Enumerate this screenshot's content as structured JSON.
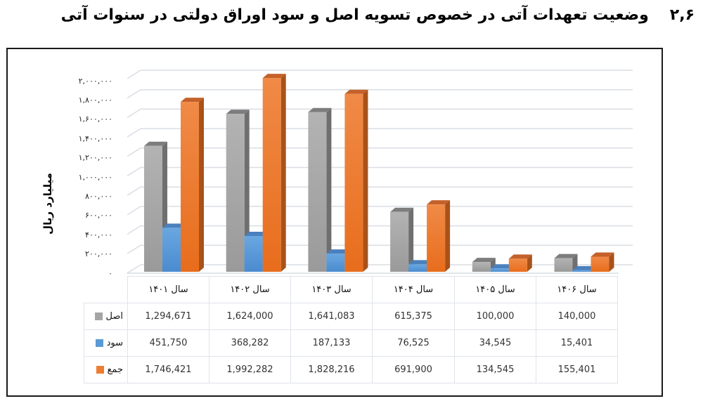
{
  "title": {
    "number": "۲,۶",
    "text": "وضعیت تعهدات آتی در خصوص تسویه اصل و سود اوراق دولتی در سنوات آتی"
  },
  "colors": {
    "principal": "#a5a5a5",
    "interest": "#5b9bd5",
    "total": "#ed7d31",
    "gridline": "#d9dde3",
    "frame": "#1a1a1a"
  },
  "axis": {
    "ylabel": "میلیارد ریال",
    "yticks": [
      "۲,۰۰۰,۰۰۰",
      "۱,۸۰۰,۰۰۰",
      "۱,۶۰۰,۰۰۰",
      "۱,۴۰۰,۰۰۰",
      "۱,۲۰۰,۰۰۰",
      "۱,۰۰۰,۰۰۰",
      "۸۰۰,۰۰۰",
      "۶۰۰,۰۰۰",
      "۴۰۰,۰۰۰",
      "۲۰۰,۰۰۰",
      "۰"
    ]
  },
  "table": {
    "headers": [
      "سال ۱۴۰۱",
      "سال ۱۴۰۲",
      "سال ۱۴۰۳",
      "سال ۱۴۰۴",
      "سال ۱۴۰۵",
      "سال ۱۴۰۶"
    ],
    "rows": [
      {
        "label": "اصل",
        "values": [
          "1,294,671",
          "1,624,000",
          "1,641,083",
          "615,375",
          "100,000",
          "140,000"
        ]
      },
      {
        "label": "سود",
        "values": [
          "451,750",
          "368,282",
          "187,133",
          "76,525",
          "34,545",
          "15,401"
        ]
      },
      {
        "label": "جمع",
        "values": [
          "1,746,421",
          "1,992,282",
          "1,828,216",
          "691,900",
          "134,545",
          "155,401"
        ]
      }
    ]
  },
  "chart_data": {
    "type": "bar",
    "title": "وضعیت تعهدات آتی در خصوص تسویه اصل و سود اوراق دولتی در سنوات آتی",
    "xlabel": "",
    "ylabel": "میلیارد ریال",
    "ylim": [
      0,
      2000000
    ],
    "ytick_step": 200000,
    "grid": true,
    "style": "3d-clustered-column with data table",
    "legend_position": "data-table",
    "categories": [
      "سال ۱۴۰۱",
      "سال ۱۴۰۲",
      "سال ۱۴۰۳",
      "سال ۱۴۰۴",
      "سال ۱۴۰۵",
      "سال ۱۴۰۶"
    ],
    "series": [
      {
        "name": "اصل",
        "color": "#a5a5a5",
        "values": [
          1294671,
          1624000,
          1641083,
          615375,
          100000,
          140000
        ]
      },
      {
        "name": "سود",
        "color": "#5b9bd5",
        "values": [
          451750,
          368282,
          187133,
          76525,
          34545,
          15401
        ]
      },
      {
        "name": "جمع",
        "color": "#ed7d31",
        "values": [
          1746421,
          1992282,
          1828216,
          691900,
          134545,
          155401
        ]
      }
    ]
  }
}
